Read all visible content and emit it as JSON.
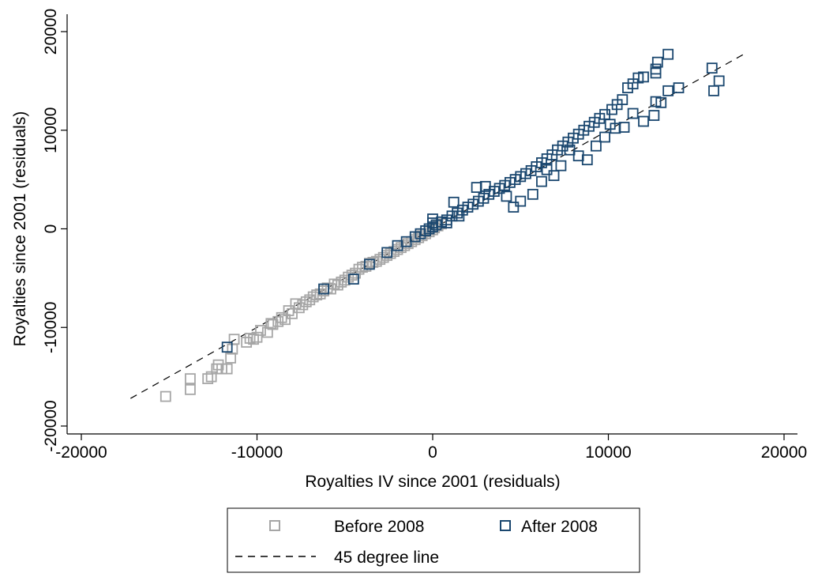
{
  "chart_data": {
    "type": "scatter",
    "title": "",
    "xlabel": "Royalties IV since 2001 (residuals)",
    "ylabel": "Royalties since 2001 (residuals)",
    "xlim": [
      -20000,
      20000
    ],
    "ylim": [
      -20000,
      20000
    ],
    "xticks": [
      -20000,
      -10000,
      0,
      10000,
      20000
    ],
    "yticks": [
      -20000,
      -10000,
      0,
      10000,
      20000
    ],
    "xtick_labels": [
      "-20000",
      "-10000",
      "0",
      "10000",
      "20000"
    ],
    "ytick_labels": [
      "-20000",
      "-10000",
      "0",
      "10000",
      "20000"
    ],
    "grid": false,
    "legend": {
      "placement": "bottom",
      "items": [
        {
          "label": "Before 2008",
          "marker": "hollow-square",
          "color": "#a6a6a6"
        },
        {
          "label": "After 2008",
          "marker": "hollow-square",
          "color": "#1a476f"
        },
        {
          "label": "45 degree line",
          "marker": "dashed-line",
          "color": "#000000"
        }
      ]
    },
    "reference_line": {
      "name": "45 degree line",
      "x": [
        -17200,
        17700
      ],
      "y": [
        -17200,
        17700
      ]
    },
    "series": [
      {
        "name": "Before 2008",
        "color": "#a6a6a6",
        "marker": "hollow-square",
        "x": [
          -15200,
          -13800,
          -13800,
          -12800,
          -12600,
          -12200,
          -12300,
          -12000,
          -11700,
          -11500,
          -11400,
          -11300,
          -10600,
          -10400,
          -10200,
          -10000,
          -9800,
          -9400,
          -9200,
          -9100,
          -8800,
          -8600,
          -8400,
          -8200,
          -8000,
          -7800,
          -7600,
          -7400,
          -7200,
          -7000,
          -6800,
          -6600,
          -6400,
          -6200,
          -6000,
          -5800,
          -5600,
          -5400,
          -5200,
          -5000,
          -4800,
          -4600,
          -4400,
          -4200,
          -4000,
          -3800,
          -3600,
          -3400,
          -3200,
          -3000,
          -2800,
          -2600,
          -2400,
          -2200,
          -2000,
          -1800,
          -1600,
          -1400,
          -1200,
          -1000,
          -800,
          -600,
          -400,
          -200,
          0,
          100,
          300,
          500
        ],
        "y": [
          -17000,
          -15200,
          -16300,
          -15200,
          -15000,
          -13800,
          -14200,
          -14200,
          -14200,
          -13100,
          -12200,
          -11200,
          -11500,
          -11100,
          -11200,
          -11000,
          -10300,
          -10500,
          -9600,
          -9700,
          -9400,
          -9000,
          -9200,
          -8300,
          -8600,
          -7600,
          -8000,
          -7700,
          -7400,
          -7200,
          -6900,
          -6700,
          -6600,
          -6300,
          -6000,
          -6100,
          -5600,
          -5700,
          -5400,
          -5200,
          -4900,
          -4700,
          -4500,
          -4100,
          -3900,
          -3800,
          -3500,
          -3400,
          -3300,
          -3100,
          -2900,
          -2700,
          -2500,
          -2300,
          -2100,
          -1900,
          -1700,
          -1500,
          -1300,
          -1100,
          -900,
          -700,
          -500,
          -300,
          -100,
          100,
          300,
          500
        ]
      },
      {
        "name": "After 2008",
        "color": "#1a476f",
        "marker": "hollow-square",
        "x": [
          -11700,
          -6200,
          -4500,
          -3600,
          -2600,
          -2000,
          -1500,
          -1000,
          -700,
          -400,
          -200,
          0,
          0,
          200,
          500,
          800,
          1100,
          1400,
          1700,
          2000,
          2300,
          2600,
          2900,
          3200,
          3500,
          3800,
          4100,
          4400,
          4700,
          5000,
          5300,
          5600,
          5900,
          6200,
          6500,
          6800,
          7100,
          7400,
          7700,
          8000,
          8300,
          8600,
          8900,
          9200,
          9500,
          9800,
          10200,
          10500,
          10800,
          11100,
          11400,
          11700,
          12000,
          12600,
          12700,
          12700,
          12800,
          13000,
          13400,
          13400,
          14000,
          15900,
          16000,
          16300,
          3000,
          4200,
          4600,
          5000,
          5700,
          6200,
          6500,
          6900,
          7300,
          7800,
          8300,
          8800,
          9300,
          9800,
          10100,
          10400,
          10900,
          11400,
          12000,
          12700,
          800,
          1500,
          2500,
          1200,
          0
        ],
        "y": [
          -12000,
          -6100,
          -5100,
          -3600,
          -2400,
          -1700,
          -1300,
          -800,
          -500,
          -200,
          0,
          1000,
          200,
          400,
          700,
          900,
          1300,
          1600,
          1900,
          2200,
          2500,
          2800,
          3100,
          3500,
          3800,
          4100,
          4400,
          4700,
          5000,
          5300,
          5600,
          5900,
          6300,
          6700,
          7100,
          7500,
          8000,
          8400,
          8800,
          9200,
          9600,
          10000,
          10400,
          10800,
          11200,
          11600,
          12100,
          12600,
          13100,
          14300,
          14700,
          15300,
          15400,
          11500,
          15800,
          16200,
          16900,
          12800,
          14000,
          17700,
          14300,
          16300,
          14000,
          15000,
          4300,
          3300,
          2200,
          2800,
          3500,
          4800,
          6000,
          5400,
          6400,
          8000,
          7400,
          7000,
          8400,
          9300,
          10600,
          10200,
          10300,
          11700,
          10900,
          12900,
          600,
          1300,
          4200,
          2700,
          600
        ]
      }
    ]
  }
}
